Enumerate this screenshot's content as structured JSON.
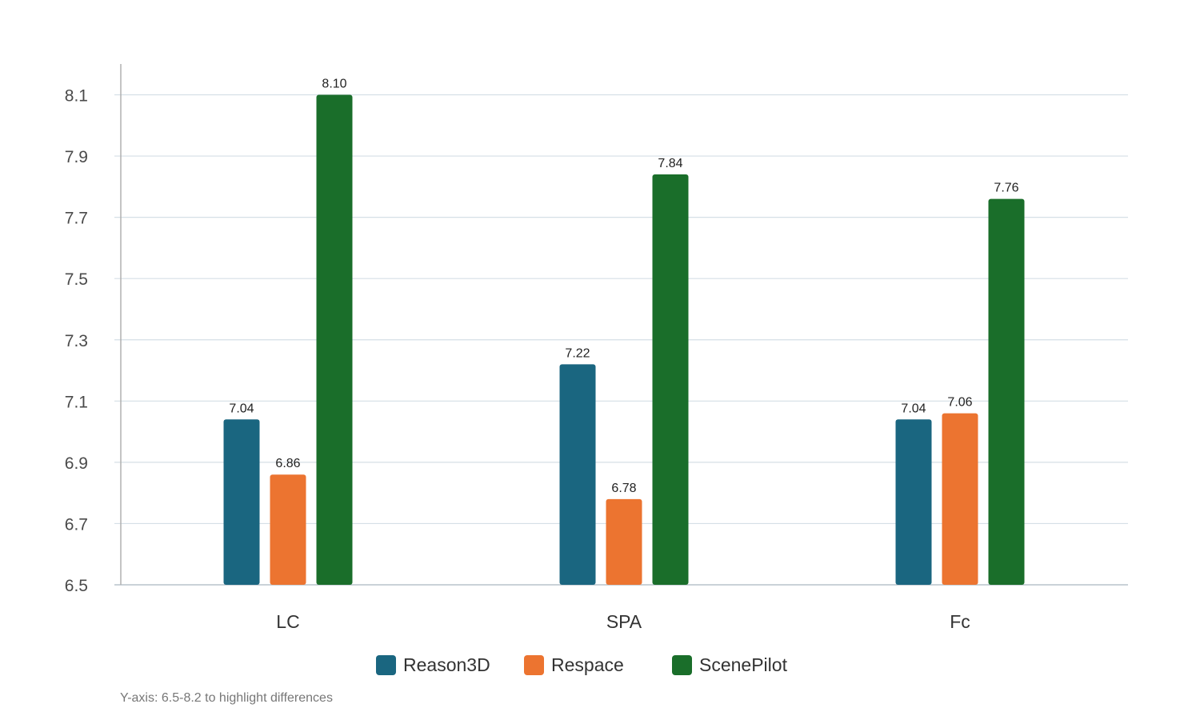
{
  "chart_data": {
    "type": "bar",
    "categories": [
      "LC",
      "SPA",
      "Fc"
    ],
    "series": [
      {
        "name": "Reason3D",
        "values": [
          7.04,
          7.22,
          7.04
        ],
        "labels": [
          "7.04",
          "7.22",
          "7.04"
        ],
        "color": "#1a6680"
      },
      {
        "name": "Respace",
        "values": [
          6.86,
          6.78,
          7.06
        ],
        "labels": [
          "6.86",
          "6.78",
          "7.06"
        ],
        "color": "#ec7430"
      },
      {
        "name": "ScenePilot",
        "values": [
          8.1,
          7.84,
          7.76
        ],
        "labels": [
          "8.10",
          "7.84",
          "7.76"
        ],
        "color": "#1a6e2a"
      }
    ],
    "ylim": [
      6.5,
      8.2
    ],
    "yticks": [
      "6.5",
      "6.7",
      "6.9",
      "7.1",
      "7.3",
      "7.5",
      "7.7",
      "7.9",
      "8.1"
    ],
    "grid": true,
    "legend_position": "bottom-center",
    "annotation": "Y-axis: 6.5-8.2 to highlight differences"
  }
}
